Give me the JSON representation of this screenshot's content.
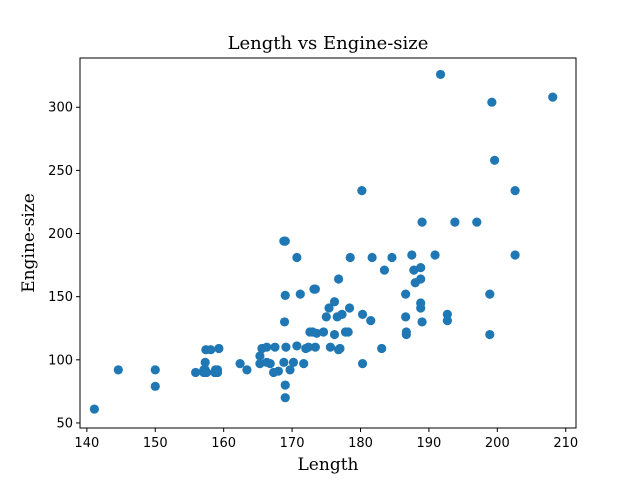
{
  "chart_data": {
    "type": "scatter",
    "title": "Length vs Engine-size",
    "xlabel": "Length",
    "ylabel": "Engine-size",
    "xlim": [
      139,
      211.5
    ],
    "ylim": [
      46,
      339
    ],
    "xticks": [
      140,
      150,
      160,
      170,
      180,
      190,
      200,
      210
    ],
    "yticks": [
      50,
      100,
      150,
      200,
      250,
      300
    ],
    "grid": false,
    "point_color": "#1f77b4",
    "series": [
      {
        "name": "Length vs Engine-size",
        "points": [
          [
            141.1,
            61
          ],
          [
            144.6,
            92
          ],
          [
            150,
            92
          ],
          [
            150,
            79
          ],
          [
            155.9,
            90
          ],
          [
            157.1,
            90
          ],
          [
            157.1,
            92
          ],
          [
            157.3,
            92
          ],
          [
            157.3,
            98
          ],
          [
            157.4,
            108
          ],
          [
            158.1,
            108
          ],
          [
            158.7,
            90
          ],
          [
            158.8,
            92
          ],
          [
            158.8,
            90
          ],
          [
            159.1,
            92
          ],
          [
            159.3,
            109
          ],
          [
            159.1,
            90
          ],
          [
            157.5,
            90
          ],
          [
            162.4,
            97
          ],
          [
            163.4,
            92
          ],
          [
            165.3,
            97
          ],
          [
            165.3,
            103
          ],
          [
            165.6,
            109
          ],
          [
            166.3,
            110
          ],
          [
            166.3,
            98
          ],
          [
            166.8,
            97
          ],
          [
            167.3,
            90
          ],
          [
            167.5,
            110
          ],
          [
            168,
            91
          ],
          [
            168.8,
            98
          ],
          [
            168.9,
            130
          ],
          [
            169,
            70
          ],
          [
            169,
            80
          ],
          [
            169,
            151
          ],
          [
            169.1,
            110
          ],
          [
            168.8,
            194
          ],
          [
            169,
            194
          ],
          [
            169.7,
            92
          ],
          [
            170.2,
            98
          ],
          [
            170.7,
            181
          ],
          [
            170.7,
            111
          ],
          [
            171.2,
            152
          ],
          [
            171.7,
            97
          ],
          [
            172,
            109
          ],
          [
            172.4,
            110
          ],
          [
            172.6,
            122
          ],
          [
            173,
            122
          ],
          [
            173.2,
            156
          ],
          [
            173.4,
            156
          ],
          [
            173.4,
            110
          ],
          [
            173.6,
            121
          ],
          [
            174.6,
            122
          ],
          [
            175,
            134
          ],
          [
            175.4,
            141
          ],
          [
            175.6,
            110
          ],
          [
            176.2,
            146
          ],
          [
            176.2,
            120
          ],
          [
            176.6,
            134
          ],
          [
            176.8,
            164
          ],
          [
            177,
            109
          ],
          [
            176.8,
            108
          ],
          [
            177.3,
            136
          ],
          [
            177.8,
            122
          ],
          [
            178.2,
            122
          ],
          [
            178.4,
            141
          ],
          [
            178.5,
            181
          ],
          [
            180.2,
            234
          ],
          [
            180.3,
            97
          ],
          [
            180.3,
            136
          ],
          [
            181.5,
            131
          ],
          [
            181.7,
            181
          ],
          [
            183.1,
            109
          ],
          [
            183.5,
            171
          ],
          [
            184.6,
            181
          ],
          [
            186.6,
            152
          ],
          [
            186.6,
            134
          ],
          [
            186.7,
            120
          ],
          [
            186.7,
            122
          ],
          [
            187.5,
            183
          ],
          [
            187.8,
            171
          ],
          [
            188,
            161
          ],
          [
            188.8,
            164
          ],
          [
            188.8,
            173
          ],
          [
            188.8,
            141
          ],
          [
            188.8,
            145
          ],
          [
            189,
            130
          ],
          [
            189,
            209
          ],
          [
            190.9,
            183
          ],
          [
            191.7,
            326
          ],
          [
            192.7,
            136
          ],
          [
            192.7,
            131
          ],
          [
            193.8,
            209
          ],
          [
            197,
            209
          ],
          [
            198.9,
            120
          ],
          [
            198.9,
            152
          ],
          [
            199.2,
            304
          ],
          [
            199.6,
            258
          ],
          [
            202.6,
            234
          ],
          [
            202.6,
            183
          ],
          [
            208.1,
            308
          ]
        ]
      }
    ]
  }
}
